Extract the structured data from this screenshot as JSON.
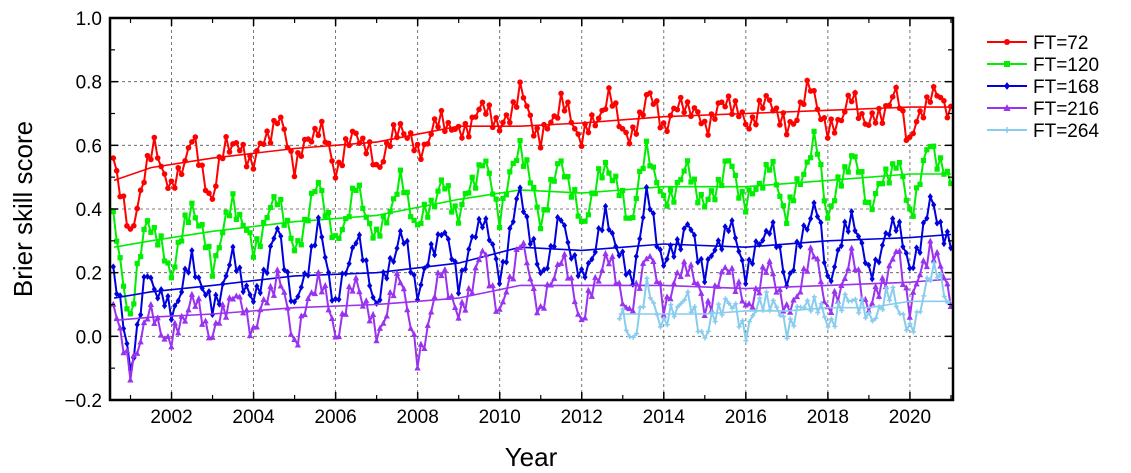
{
  "chart_data": {
    "type": "line",
    "title": "",
    "xlabel": "Year",
    "ylabel": "Brier skill score",
    "xlim": [
      2000.5,
      2021.05
    ],
    "ylim": [
      -0.2,
      1.0
    ],
    "xticks": [
      2002,
      2004,
      2006,
      2008,
      2010,
      2012,
      2014,
      2016,
      2018,
      2020
    ],
    "xtick_labels": [
      "2002",
      "2004",
      "2006",
      "2008",
      "2010",
      "2012",
      "2014",
      "2016",
      "2018",
      "2020"
    ],
    "yticks": [
      -0.2,
      0.0,
      0.2,
      0.4,
      0.6,
      0.8,
      1.0
    ],
    "ytick_labels": [
      "−0.2",
      "0.0",
      "0.2",
      "0.4",
      "0.6",
      "0.8",
      "1.0"
    ],
    "grid": true,
    "legend_position": "outside-right",
    "series": [
      {
        "name": "FT=72",
        "color": "#ff0000",
        "marker": "circle",
        "start": 2000.58,
        "step": 0.08333,
        "smooth": [
          [
            2000.6,
            0.49
          ],
          [
            2001.5,
            0.53
          ],
          [
            2003,
            0.56
          ],
          [
            2005,
            0.59
          ],
          [
            2007,
            0.61
          ],
          [
            2009,
            0.66
          ],
          [
            2010.5,
            0.66
          ],
          [
            2012,
            0.67
          ],
          [
            2014,
            0.69
          ],
          [
            2016,
            0.7
          ],
          [
            2018,
            0.71
          ],
          [
            2020,
            0.72
          ],
          [
            2021,
            0.72
          ]
        ],
        "anchors": [
          [
            2000.6,
            0.56
          ],
          [
            2000.8,
            0.44
          ],
          [
            2001.0,
            0.3
          ],
          [
            2001.3,
            0.5
          ],
          [
            2001.6,
            0.6
          ],
          [
            2002,
            0.45
          ],
          [
            2002.5,
            0.62
          ],
          [
            2003,
            0.42
          ],
          [
            2003.3,
            0.62
          ],
          [
            2004,
            0.55
          ],
          [
            2004.6,
            0.69
          ],
          [
            2005,
            0.54
          ],
          [
            2005.6,
            0.67
          ],
          [
            2006,
            0.52
          ],
          [
            2006.5,
            0.65
          ],
          [
            2007,
            0.53
          ],
          [
            2007.6,
            0.67
          ],
          [
            2008,
            0.57
          ],
          [
            2008.6,
            0.69
          ],
          [
            2009,
            0.63
          ],
          [
            2009.7,
            0.73
          ],
          [
            2010,
            0.64
          ],
          [
            2010.5,
            0.77
          ],
          [
            2011,
            0.61
          ],
          [
            2011.5,
            0.74
          ],
          [
            2012,
            0.62
          ],
          [
            2012.7,
            0.75
          ],
          [
            2013.2,
            0.6
          ],
          [
            2013.6,
            0.77
          ],
          [
            2014,
            0.66
          ],
          [
            2014.5,
            0.74
          ],
          [
            2015,
            0.66
          ],
          [
            2015.6,
            0.75
          ],
          [
            2016,
            0.66
          ],
          [
            2016.6,
            0.75
          ],
          [
            2017,
            0.64
          ],
          [
            2017.6,
            0.79
          ],
          [
            2018,
            0.63
          ],
          [
            2018.6,
            0.75
          ],
          [
            2019,
            0.66
          ],
          [
            2019.7,
            0.76
          ],
          [
            2020,
            0.61
          ],
          [
            2020.5,
            0.77
          ],
          [
            2021,
            0.71
          ]
        ],
        "phase": 0.0
      },
      {
        "name": "FT=120",
        "color": "#00ee00",
        "marker": "square",
        "start": 2000.58,
        "step": 0.08333,
        "smooth": [
          [
            2000.6,
            0.28
          ],
          [
            2001.5,
            0.3
          ],
          [
            2003,
            0.33
          ],
          [
            2005,
            0.36
          ],
          [
            2007,
            0.38
          ],
          [
            2009,
            0.43
          ],
          [
            2010.5,
            0.46
          ],
          [
            2012,
            0.45
          ],
          [
            2014,
            0.47
          ],
          [
            2016,
            0.47
          ],
          [
            2018,
            0.49
          ],
          [
            2020,
            0.51
          ],
          [
            2021,
            0.51
          ]
        ],
        "anchors": [
          [
            2000.6,
            0.36
          ],
          [
            2000.8,
            0.18
          ],
          [
            2001.0,
            0.06
          ],
          [
            2001.4,
            0.38
          ],
          [
            2002,
            0.2
          ],
          [
            2002.5,
            0.42
          ],
          [
            2003,
            0.22
          ],
          [
            2003.5,
            0.43
          ],
          [
            2004,
            0.27
          ],
          [
            2004.6,
            0.45
          ],
          [
            2005,
            0.26
          ],
          [
            2005.6,
            0.49
          ],
          [
            2006,
            0.28
          ],
          [
            2006.5,
            0.47
          ],
          [
            2007,
            0.3
          ],
          [
            2007.6,
            0.49
          ],
          [
            2008,
            0.34
          ],
          [
            2008.6,
            0.48
          ],
          [
            2009,
            0.38
          ],
          [
            2009.6,
            0.56
          ],
          [
            2010,
            0.38
          ],
          [
            2010.5,
            0.61
          ],
          [
            2011,
            0.36
          ],
          [
            2011.5,
            0.56
          ],
          [
            2012,
            0.35
          ],
          [
            2012.6,
            0.55
          ],
          [
            2013.2,
            0.36
          ],
          [
            2013.6,
            0.6
          ],
          [
            2014,
            0.41
          ],
          [
            2014.6,
            0.53
          ],
          [
            2015,
            0.4
          ],
          [
            2015.6,
            0.55
          ],
          [
            2016,
            0.41
          ],
          [
            2016.6,
            0.54
          ],
          [
            2017,
            0.38
          ],
          [
            2017.7,
            0.62
          ],
          [
            2018,
            0.38
          ],
          [
            2018.6,
            0.58
          ],
          [
            2019,
            0.41
          ],
          [
            2019.7,
            0.56
          ],
          [
            2020,
            0.38
          ],
          [
            2020.5,
            0.61
          ],
          [
            2021,
            0.47
          ]
        ],
        "phase": 1.3
      },
      {
        "name": "FT=168",
        "color": "#0000dd",
        "marker": "diamond",
        "start": 2000.58,
        "step": 0.08333,
        "smooth": [
          [
            2000.6,
            0.12
          ],
          [
            2001.5,
            0.14
          ],
          [
            2003,
            0.16
          ],
          [
            2005,
            0.19
          ],
          [
            2007,
            0.2
          ],
          [
            2009,
            0.23
          ],
          [
            2010.5,
            0.28
          ],
          [
            2012,
            0.27
          ],
          [
            2014,
            0.29
          ],
          [
            2016,
            0.28
          ],
          [
            2018,
            0.3
          ],
          [
            2020,
            0.31
          ],
          [
            2021,
            0.32
          ]
        ],
        "anchors": [
          [
            2000.6,
            0.21
          ],
          [
            2000.8,
            0.05
          ],
          [
            2001.0,
            -0.1
          ],
          [
            2001.4,
            0.2
          ],
          [
            2002,
            0.07
          ],
          [
            2002.5,
            0.24
          ],
          [
            2003,
            0.08
          ],
          [
            2003.5,
            0.25
          ],
          [
            2004,
            0.1
          ],
          [
            2004.6,
            0.34
          ],
          [
            2005,
            0.08
          ],
          [
            2005.6,
            0.35
          ],
          [
            2006,
            0.09
          ],
          [
            2006.5,
            0.32
          ],
          [
            2007,
            0.1
          ],
          [
            2007.6,
            0.33
          ],
          [
            2008,
            0.14
          ],
          [
            2008.6,
            0.35
          ],
          [
            2009,
            0.17
          ],
          [
            2009.6,
            0.39
          ],
          [
            2010,
            0.18
          ],
          [
            2010.5,
            0.46
          ],
          [
            2011,
            0.18
          ],
          [
            2011.5,
            0.37
          ],
          [
            2012,
            0.17
          ],
          [
            2012.6,
            0.38
          ],
          [
            2013.2,
            0.16
          ],
          [
            2013.6,
            0.45
          ],
          [
            2014,
            0.22
          ],
          [
            2014.6,
            0.35
          ],
          [
            2015,
            0.2
          ],
          [
            2015.6,
            0.36
          ],
          [
            2016,
            0.2
          ],
          [
            2016.6,
            0.36
          ],
          [
            2017,
            0.17
          ],
          [
            2017.7,
            0.43
          ],
          [
            2018,
            0.17
          ],
          [
            2018.6,
            0.39
          ],
          [
            2019,
            0.19
          ],
          [
            2019.7,
            0.38
          ],
          [
            2020,
            0.19
          ],
          [
            2020.5,
            0.42
          ],
          [
            2021,
            0.28
          ]
        ],
        "phase": 2.1
      },
      {
        "name": "FT=216",
        "color": "#9933ee",
        "marker": "triangle",
        "start": 2000.58,
        "step": 0.08333,
        "smooth": [
          [
            2000.6,
            0.05
          ],
          [
            2001.5,
            0.06
          ],
          [
            2003,
            0.07
          ],
          [
            2005,
            0.09
          ],
          [
            2007,
            0.1
          ],
          [
            2009,
            0.12
          ],
          [
            2010.5,
            0.16
          ],
          [
            2012,
            0.16
          ],
          [
            2014,
            0.16
          ],
          [
            2016,
            0.15
          ],
          [
            2018,
            0.16
          ],
          [
            2020,
            0.17
          ],
          [
            2021,
            0.18
          ]
        ],
        "anchors": [
          [
            2000.6,
            0.1
          ],
          [
            2000.8,
            0.0
          ],
          [
            2001.0,
            -0.13
          ],
          [
            2001.4,
            0.08
          ],
          [
            2002,
            -0.02
          ],
          [
            2002.5,
            0.12
          ],
          [
            2003,
            0.0
          ],
          [
            2003.5,
            0.14
          ],
          [
            2004,
            0.02
          ],
          [
            2004.6,
            0.2
          ],
          [
            2005,
            -0.02
          ],
          [
            2005.6,
            0.2
          ],
          [
            2006,
            0.0
          ],
          [
            2006.5,
            0.18
          ],
          [
            2007,
            0.0
          ],
          [
            2007.6,
            0.2
          ],
          [
            2008,
            -0.09
          ],
          [
            2008.6,
            0.22
          ],
          [
            2009,
            0.05
          ],
          [
            2009.6,
            0.27
          ],
          [
            2010,
            0.06
          ],
          [
            2010.5,
            0.3
          ],
          [
            2011,
            0.07
          ],
          [
            2011.5,
            0.26
          ],
          [
            2012,
            0.05
          ],
          [
            2012.6,
            0.26
          ],
          [
            2013.2,
            0.06
          ],
          [
            2013.6,
            0.28
          ],
          [
            2014,
            0.1
          ],
          [
            2014.6,
            0.24
          ],
          [
            2015,
            0.08
          ],
          [
            2015.6,
            0.23
          ],
          [
            2016,
            0.08
          ],
          [
            2016.6,
            0.23
          ],
          [
            2017,
            0.06
          ],
          [
            2017.7,
            0.28
          ],
          [
            2018,
            0.06
          ],
          [
            2018.6,
            0.25
          ],
          [
            2019,
            0.08
          ],
          [
            2019.7,
            0.27
          ],
          [
            2020,
            0.09
          ],
          [
            2020.5,
            0.29
          ],
          [
            2021,
            0.13
          ]
        ],
        "phase": 3.4
      },
      {
        "name": "FT=264",
        "color": "#88ccee",
        "marker": "plus",
        "start": 2012.92,
        "step": 0.08333,
        "smooth": [
          [
            2012.9,
            0.07
          ],
          [
            2014,
            0.07
          ],
          [
            2015,
            0.07
          ],
          [
            2016,
            0.08
          ],
          [
            2017,
            0.08
          ],
          [
            2018,
            0.09
          ],
          [
            2019,
            0.09
          ],
          [
            2020,
            0.11
          ],
          [
            2021,
            0.11
          ]
        ],
        "anchors": [
          [
            2012.92,
            0.08
          ],
          [
            2013.2,
            -0.02
          ],
          [
            2013.6,
            0.15
          ],
          [
            2014,
            0.03
          ],
          [
            2014.5,
            0.13
          ],
          [
            2015,
            0.0
          ],
          [
            2015.5,
            0.12
          ],
          [
            2016,
            0.02
          ],
          [
            2016.5,
            0.13
          ],
          [
            2017,
            0.03
          ],
          [
            2017.6,
            0.12
          ],
          [
            2018,
            0.04
          ],
          [
            2018.6,
            0.13
          ],
          [
            2019,
            0.05
          ],
          [
            2019.6,
            0.14
          ],
          [
            2020,
            0.0
          ],
          [
            2020.4,
            0.16
          ],
          [
            2020.7,
            0.22
          ],
          [
            2021,
            0.06
          ]
        ],
        "phase": 4.7
      }
    ]
  }
}
